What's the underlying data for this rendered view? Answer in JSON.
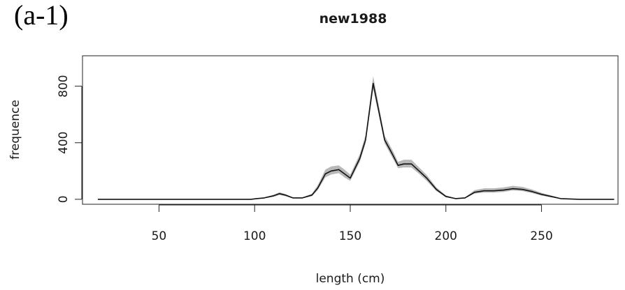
{
  "panel_label": "(a-1)",
  "chart_data": {
    "type": "line",
    "title": "new1988",
    "xlabel": "length (cm)",
    "ylabel": "frequence",
    "xlim": [
      10,
      290
    ],
    "ylim": [
      -35,
      1015
    ],
    "x_ticks": [
      50,
      100,
      150,
      200,
      250
    ],
    "y_ticks": [
      0,
      400,
      800
    ],
    "grid": false,
    "x": [
      18,
      30,
      40,
      50,
      60,
      70,
      80,
      90,
      98,
      101,
      105,
      110,
      113,
      116,
      120,
      125,
      130,
      133,
      137,
      140,
      144,
      147,
      150,
      155,
      158,
      162,
      165,
      168,
      172,
      175,
      178,
      182,
      186,
      190,
      195,
      200,
      205,
      210,
      215,
      220,
      225,
      230,
      235,
      240,
      245,
      250,
      255,
      260,
      270,
      280,
      288
    ],
    "series": [
      {
        "values": [
          0,
          0,
          0,
          0,
          0,
          0,
          0,
          0,
          0,
          5,
          10,
          25,
          40,
          30,
          10,
          10,
          30,
          80,
          180,
          200,
          210,
          180,
          150,
          290,
          420,
          820,
          620,
          420,
          320,
          240,
          250,
          250,
          200,
          150,
          70,
          20,
          5,
          10,
          50,
          60,
          60,
          65,
          75,
          70,
          55,
          35,
          20,
          5,
          0,
          0,
          0
        ],
        "lower": [
          0,
          0,
          0,
          0,
          0,
          0,
          0,
          0,
          0,
          3,
          7,
          18,
          30,
          22,
          7,
          7,
          22,
          65,
          155,
          175,
          185,
          155,
          130,
          265,
          395,
          780,
          590,
          395,
          295,
          220,
          225,
          225,
          180,
          130,
          58,
          14,
          3,
          7,
          40,
          48,
          48,
          52,
          62,
          58,
          44,
          26,
          14,
          3,
          0,
          0,
          0
        ],
        "upper": [
          0,
          0,
          0,
          0,
          0,
          0,
          0,
          0,
          0,
          8,
          14,
          33,
          50,
          38,
          14,
          14,
          40,
          100,
          210,
          232,
          240,
          210,
          175,
          320,
          455,
          870,
          660,
          450,
          350,
          265,
          280,
          280,
          225,
          172,
          85,
          28,
          8,
          14,
          65,
          78,
          78,
          84,
          95,
          88,
          70,
          46,
          28,
          8,
          0,
          0,
          0
        ]
      }
    ]
  }
}
